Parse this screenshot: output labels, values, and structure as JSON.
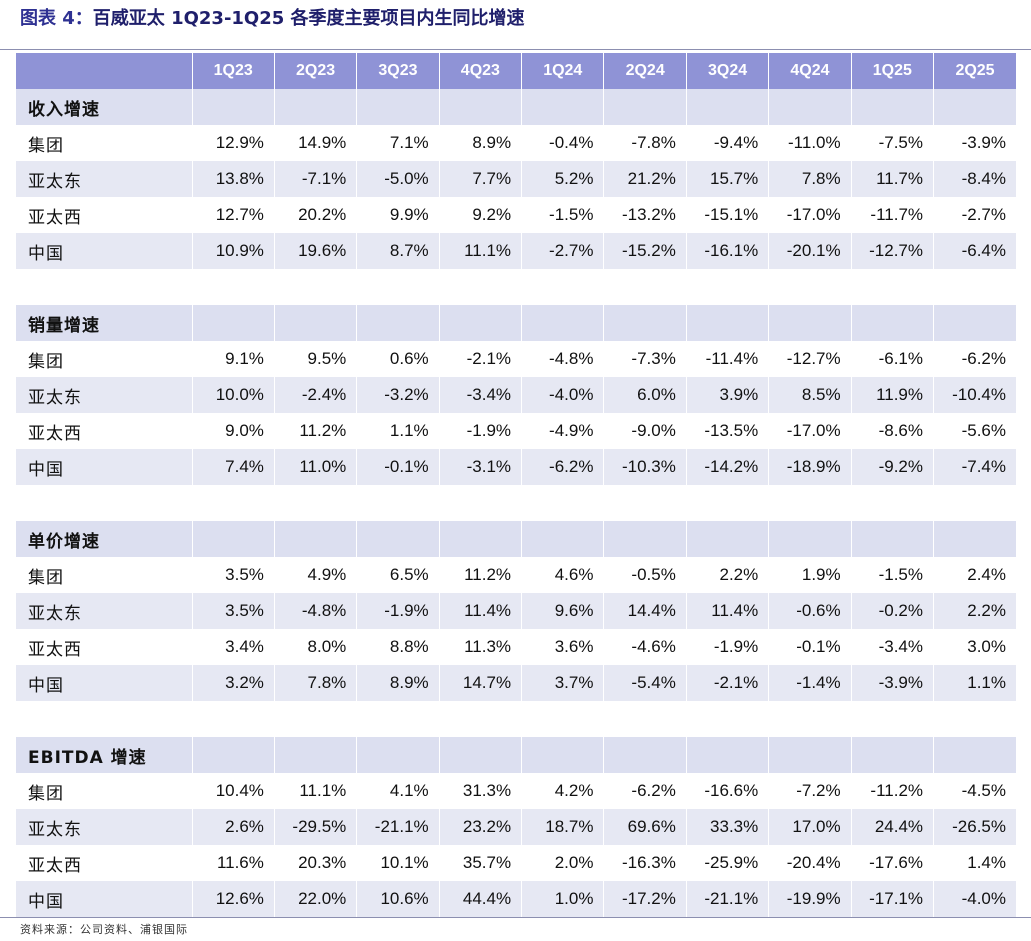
{
  "title": {
    "prefix": "图表 4：",
    "text": "百威亚太 1Q23-1Q25 各季度主要项目内生同比增速"
  },
  "columns": [
    "1Q23",
    "2Q23",
    "3Q23",
    "4Q23",
    "1Q24",
    "2Q24",
    "3Q24",
    "4Q24",
    "1Q25",
    "2Q25"
  ],
  "sections": [
    {
      "name": "收入增速",
      "rows": [
        {
          "label": "集团",
          "values": [
            "12.9%",
            "14.9%",
            "7.1%",
            "8.9%",
            "-0.4%",
            "-7.8%",
            "-9.4%",
            "-11.0%",
            "-7.5%",
            "-3.9%"
          ]
        },
        {
          "label": "亚太东",
          "values": [
            "13.8%",
            "-7.1%",
            "-5.0%",
            "7.7%",
            "5.2%",
            "21.2%",
            "15.7%",
            "7.8%",
            "11.7%",
            "-8.4%"
          ]
        },
        {
          "label": "亚太西",
          "values": [
            "12.7%",
            "20.2%",
            "9.9%",
            "9.2%",
            "-1.5%",
            "-13.2%",
            "-15.1%",
            "-17.0%",
            "-11.7%",
            "-2.7%"
          ]
        },
        {
          "label": "中国",
          "values": [
            "10.9%",
            "19.6%",
            "8.7%",
            "11.1%",
            "-2.7%",
            "-15.2%",
            "-16.1%",
            "-20.1%",
            "-12.7%",
            "-6.4%"
          ]
        }
      ]
    },
    {
      "name": "销量增速",
      "rows": [
        {
          "label": "集团",
          "values": [
            "9.1%",
            "9.5%",
            "0.6%",
            "-2.1%",
            "-4.8%",
            "-7.3%",
            "-11.4%",
            "-12.7%",
            "-6.1%",
            "-6.2%"
          ]
        },
        {
          "label": "亚太东",
          "values": [
            "10.0%",
            "-2.4%",
            "-3.2%",
            "-3.4%",
            "-4.0%",
            "6.0%",
            "3.9%",
            "8.5%",
            "11.9%",
            "-10.4%"
          ]
        },
        {
          "label": "亚太西",
          "values": [
            "9.0%",
            "11.2%",
            "1.1%",
            "-1.9%",
            "-4.9%",
            "-9.0%",
            "-13.5%",
            "-17.0%",
            "-8.6%",
            "-5.6%"
          ]
        },
        {
          "label": "中国",
          "values": [
            "7.4%",
            "11.0%",
            "-0.1%",
            "-3.1%",
            "-6.2%",
            "-10.3%",
            "-14.2%",
            "-18.9%",
            "-9.2%",
            "-7.4%"
          ]
        }
      ]
    },
    {
      "name": "单价增速",
      "rows": [
        {
          "label": "集团",
          "values": [
            "3.5%",
            "4.9%",
            "6.5%",
            "11.2%",
            "4.6%",
            "-0.5%",
            "2.2%",
            "1.9%",
            "-1.5%",
            "2.4%"
          ]
        },
        {
          "label": "亚太东",
          "values": [
            "3.5%",
            "-4.8%",
            "-1.9%",
            "11.4%",
            "9.6%",
            "14.4%",
            "11.4%",
            "-0.6%",
            "-0.2%",
            "2.2%"
          ]
        },
        {
          "label": "亚太西",
          "values": [
            "3.4%",
            "8.0%",
            "8.8%",
            "11.3%",
            "3.6%",
            "-4.6%",
            "-1.9%",
            "-0.1%",
            "-3.4%",
            "3.0%"
          ]
        },
        {
          "label": "中国",
          "values": [
            "3.2%",
            "7.8%",
            "8.9%",
            "14.7%",
            "3.7%",
            "-5.4%",
            "-2.1%",
            "-1.4%",
            "-3.9%",
            "1.1%"
          ]
        }
      ]
    },
    {
      "name": "EBITDA  增速",
      "rows": [
        {
          "label": "集团",
          "values": [
            "10.4%",
            "11.1%",
            "4.1%",
            "31.3%",
            "4.2%",
            "-6.2%",
            "-16.6%",
            "-7.2%",
            "-11.2%",
            "-4.5%"
          ]
        },
        {
          "label": "亚太东",
          "values": [
            "2.6%",
            "-29.5%",
            "-21.1%",
            "23.2%",
            "18.7%",
            "69.6%",
            "33.3%",
            "17.0%",
            "24.4%",
            "-26.5%"
          ]
        },
        {
          "label": "亚太西",
          "values": [
            "11.6%",
            "20.3%",
            "10.1%",
            "35.7%",
            "2.0%",
            "-16.3%",
            "-25.9%",
            "-20.4%",
            "-17.6%",
            "1.4%"
          ]
        },
        {
          "label": "中国",
          "values": [
            "12.6%",
            "22.0%",
            "10.6%",
            "44.4%",
            "1.0%",
            "-17.2%",
            "-21.1%",
            "-19.9%",
            "-17.1%",
            "-4.0%"
          ]
        }
      ]
    }
  ],
  "source": "资料来源：公司资料、浦银国际"
}
